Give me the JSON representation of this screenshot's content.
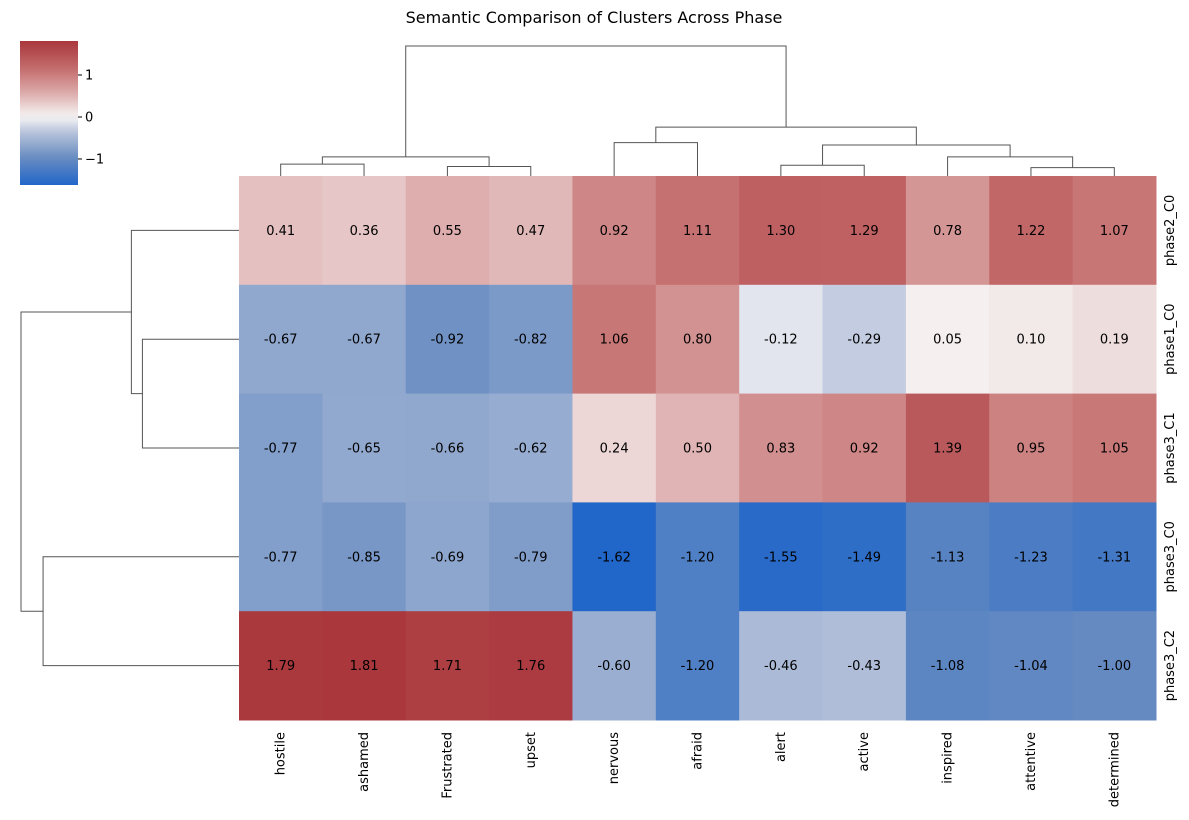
{
  "chart_data": {
    "type": "heatmap",
    "title": "Semantic Comparison of Clusters Across Phase",
    "xlabel": "",
    "ylabel": "",
    "columns": [
      "hostile",
      "ashamed",
      "Frustrated",
      "upset",
      "nervous",
      "afraid",
      "alert",
      "active",
      "inspired",
      "attentive",
      "determined"
    ],
    "rows": [
      "phase2_C0",
      "phase1_C0",
      "phase3_C1",
      "phase3_C0",
      "phase3_C2"
    ],
    "values": [
      [
        0.41,
        0.36,
        0.55,
        0.47,
        0.92,
        1.11,
        1.3,
        1.29,
        0.78,
        1.22,
        1.07
      ],
      [
        -0.67,
        -0.67,
        -0.92,
        -0.82,
        1.06,
        0.8,
        -0.12,
        -0.29,
        0.05,
        0.1,
        0.19
      ],
      [
        -0.77,
        -0.65,
        -0.66,
        -0.62,
        0.24,
        0.5,
        0.83,
        0.92,
        1.39,
        0.95,
        1.05
      ],
      [
        -0.77,
        -0.85,
        -0.69,
        -0.79,
        -1.62,
        -1.2,
        -1.55,
        -1.49,
        -1.13,
        -1.23,
        -1.31
      ],
      [
        1.79,
        1.81,
        1.71,
        1.76,
        -0.6,
        -1.2,
        -0.46,
        -0.43,
        -1.08,
        -1.04,
        -1.0
      ]
    ],
    "colormap": "vlag",
    "color_range": [
      -1.62,
      1.81
    ],
    "colorbar_ticks": [
      1,
      0,
      -1
    ],
    "colorbar_tick_labels": [
      "1",
      "0",
      "−1"
    ],
    "annotated": true,
    "value_format": "2 decimals",
    "dendrograms": {
      "columns": {
        "links": [
          {
            "left": 0,
            "right": 1,
            "height": 1.0
          },
          {
            "left": 2,
            "right": 3,
            "height": 0.8
          },
          {
            "left": 0.5,
            "right": 2.5,
            "height": 1.6
          },
          {
            "left": 4,
            "right": 5,
            "height": 2.8
          },
          {
            "left": 6,
            "right": 7,
            "height": 0.9
          },
          {
            "left": 9,
            "right": 10,
            "height": 0.7
          },
          {
            "left": 8,
            "right": 9.5,
            "height": 1.6
          },
          {
            "left": 6.5,
            "right": 8.75,
            "height": 2.6
          },
          {
            "left": 4.5,
            "right": 7.625,
            "height": 4.1
          },
          {
            "left": 1.5,
            "right": 6.0625,
            "height": 10.9
          }
        ],
        "max_height": 10.9
      },
      "rows": {
        "links": [
          {
            "left": 1,
            "right": 2,
            "height": 3.5
          },
          {
            "left": 0,
            "right": 1.5,
            "height": 3.9
          },
          {
            "left": 3,
            "right": 4,
            "height": 7.1
          },
          {
            "left": 0.75,
            "right": 3.5,
            "height": 7.9
          }
        ],
        "max_height": 7.9
      }
    }
  }
}
